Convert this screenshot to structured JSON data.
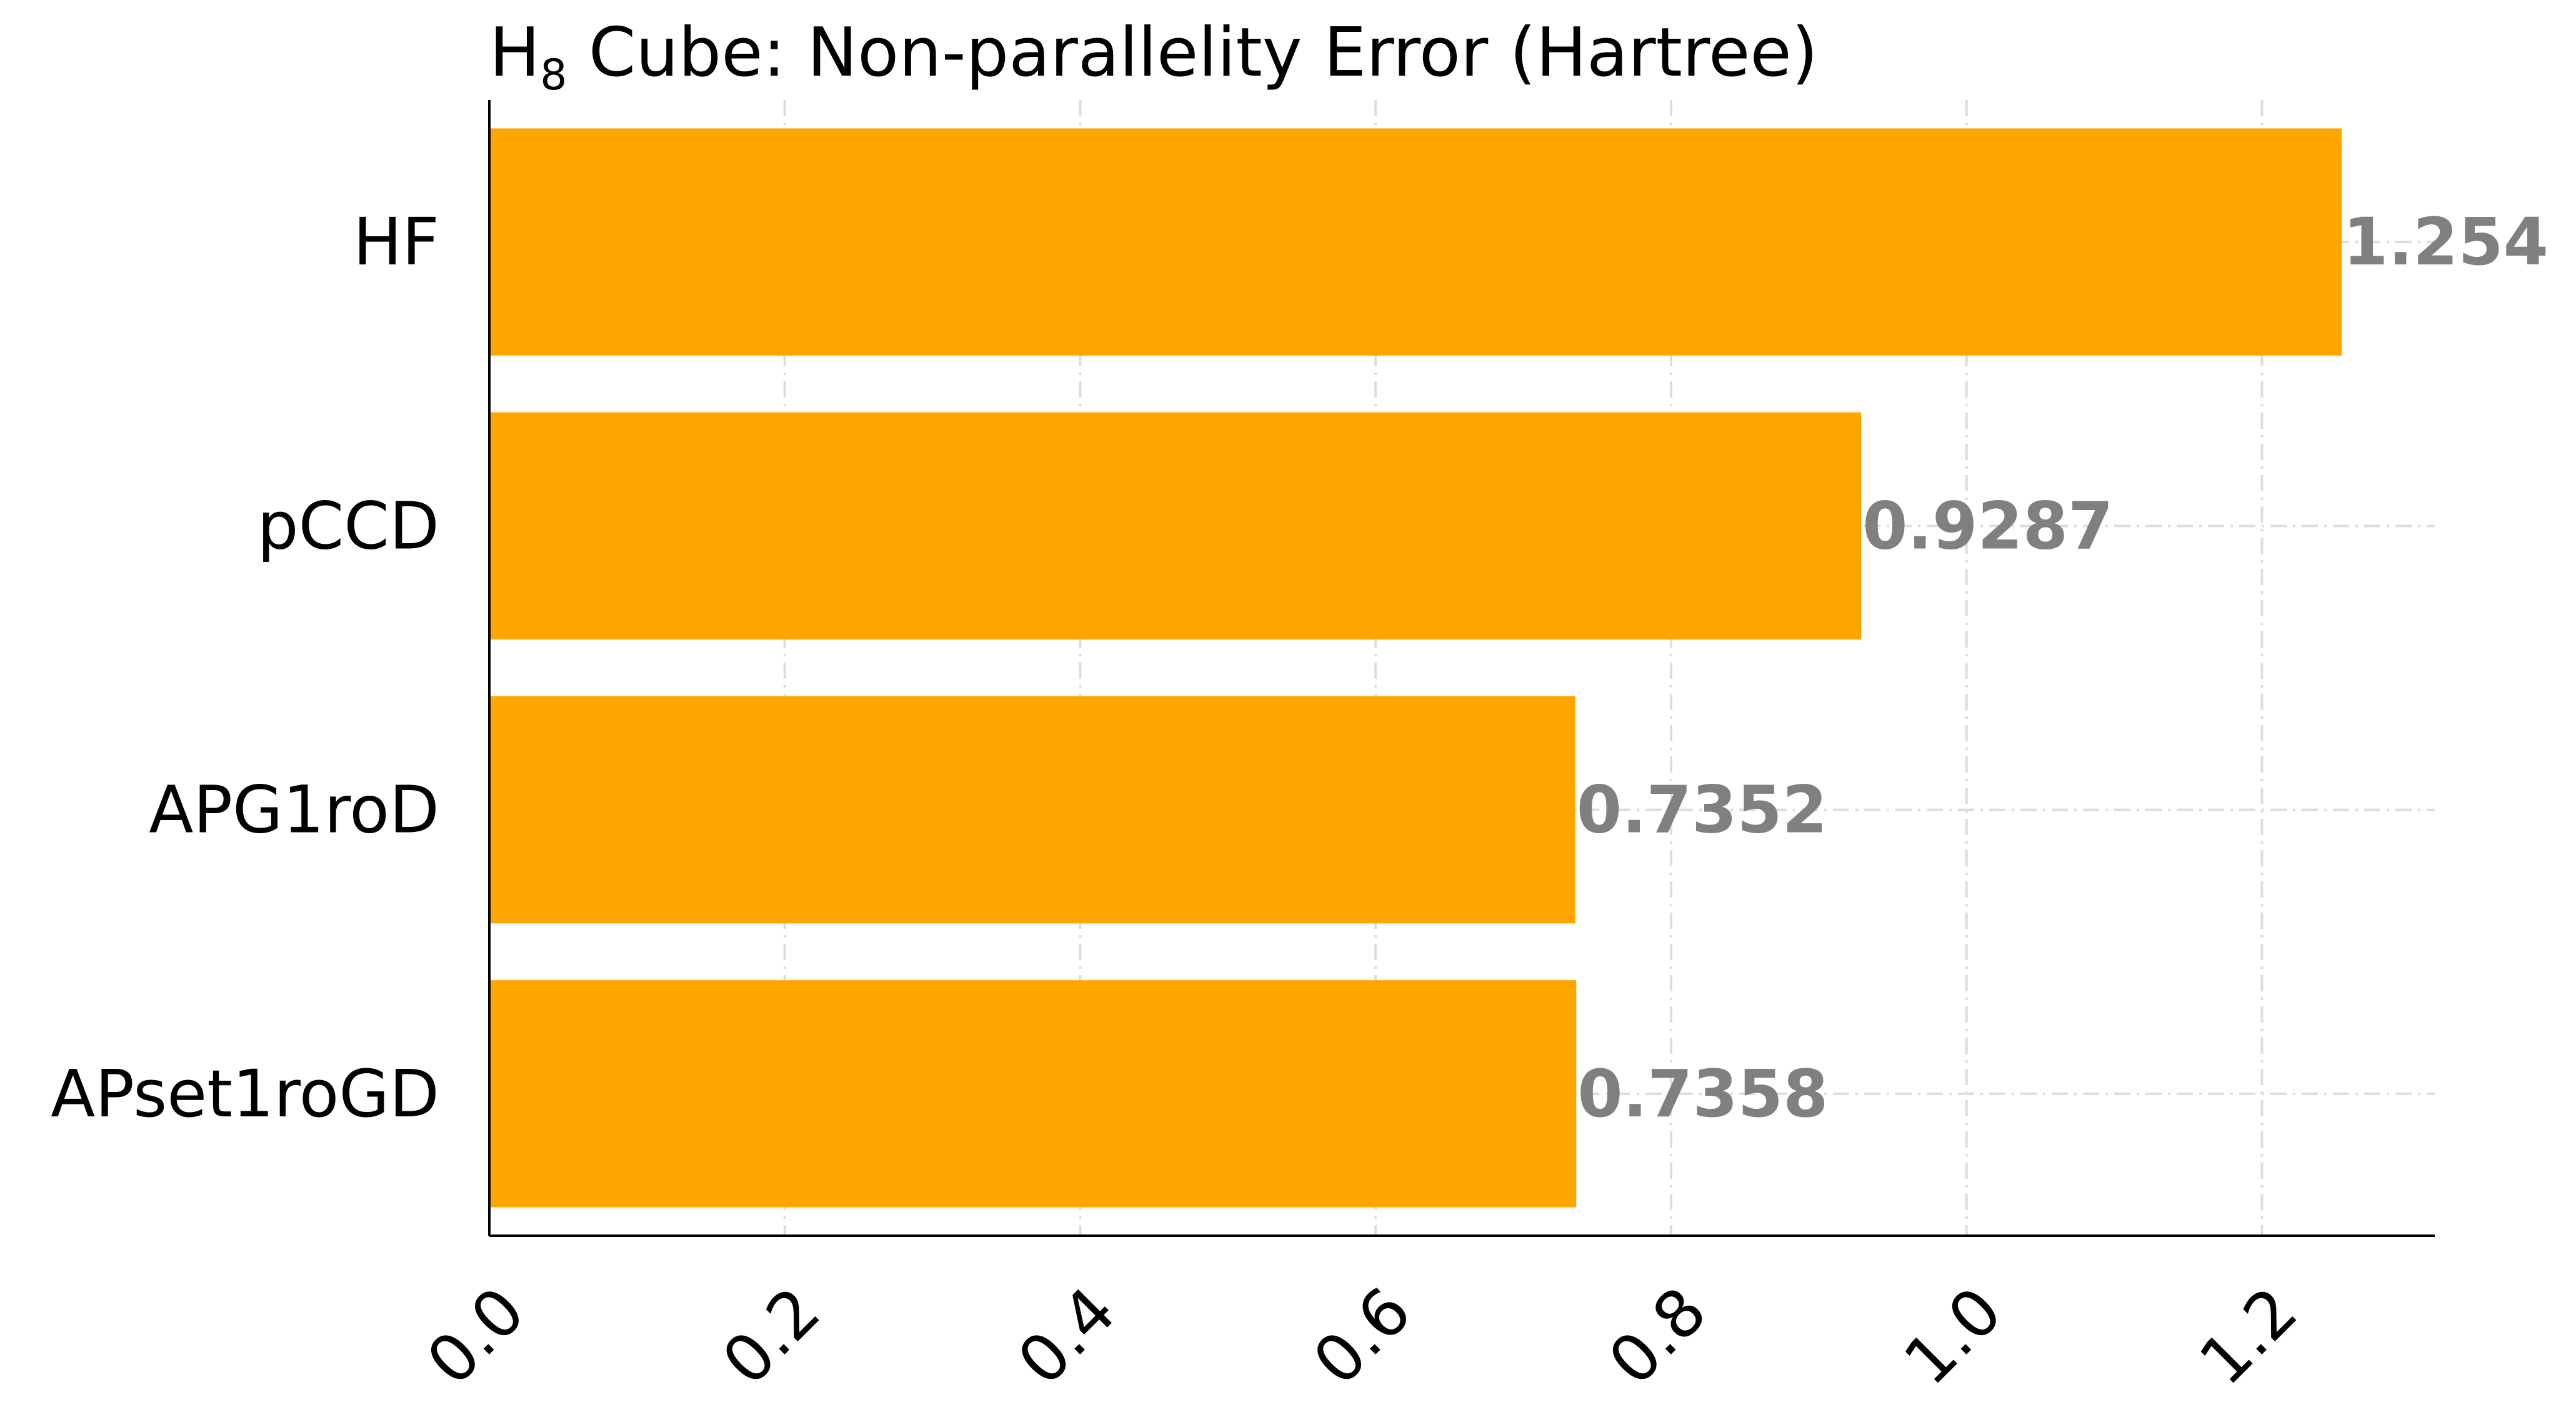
{
  "chart_data": {
    "type": "bar",
    "orientation": "horizontal",
    "title": "H8 Cube: Non-parallelity Error (Hartree)",
    "title_main": "H",
    "title_subscript": "8",
    "title_rest": " Cube: Non-parallelity Error (Hartree)",
    "categories": [
      "HF",
      "pCCD",
      "APG1roD",
      "APset1roGD"
    ],
    "values": [
      1.254,
      0.9287,
      0.7352,
      0.7358
    ],
    "value_labels": [
      "1.254",
      "0.9287",
      "0.7352",
      "0.7358"
    ],
    "xlabel": "",
    "ylabel": "",
    "xlim": [
      0,
      1.317
    ],
    "xticks": [
      0.0,
      0.2,
      0.4,
      0.6,
      0.8,
      1.0,
      1.2
    ],
    "xtick_labels": [
      "0.0",
      "0.2",
      "0.4",
      "0.6",
      "0.8",
      "1.0",
      "1.2"
    ],
    "grid": true,
    "bar_color": "#FFA500",
    "value_label_color": "#808080"
  }
}
